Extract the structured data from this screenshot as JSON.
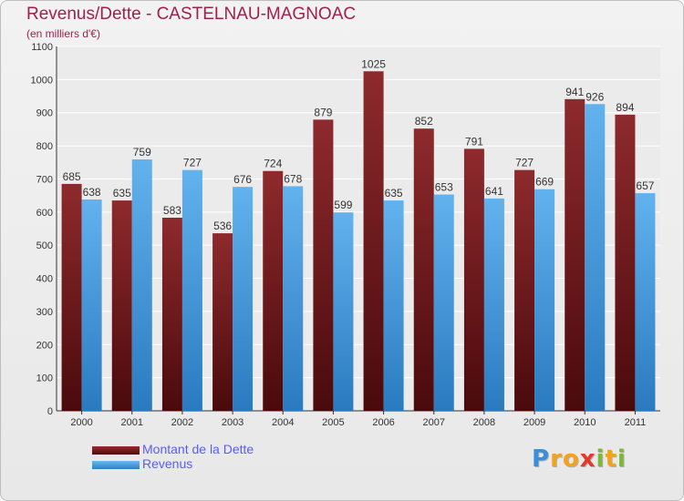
{
  "chart_data": {
    "type": "bar",
    "title": "Revenus/Dette - CASTELNAU-MAGNOAC",
    "subtitle": "(en milliers d'€)",
    "categories": [
      "2000",
      "2001",
      "2002",
      "2003",
      "2004",
      "2005",
      "2006",
      "2007",
      "2008",
      "2009",
      "2010",
      "2011"
    ],
    "series": [
      {
        "name": "Montant de la Dette",
        "color": "#7a1f22",
        "values": [
          685,
          635,
          583,
          536,
          724,
          879,
          1025,
          852,
          791,
          727,
          941,
          894
        ]
      },
      {
        "name": "Revenus",
        "color": "#4a9ee0",
        "values": [
          638,
          759,
          727,
          676,
          678,
          599,
          635,
          653,
          641,
          669,
          926,
          657
        ]
      }
    ],
    "ylim": [
      0,
      1100
    ],
    "yticks": [
      0,
      100,
      200,
      300,
      400,
      500,
      600,
      700,
      800,
      900,
      1000,
      1100
    ],
    "grid": true,
    "legend": "bottom-left"
  },
  "logo": {
    "letters": [
      "P",
      "r",
      "o",
      "x",
      "i",
      "t",
      "i"
    ],
    "colors": [
      "#3a8fd8",
      "#f4a21c",
      "#f4a21c",
      "#e53a2a",
      "#7bb83a",
      "#f4a21c",
      "#7bb83a"
    ]
  }
}
